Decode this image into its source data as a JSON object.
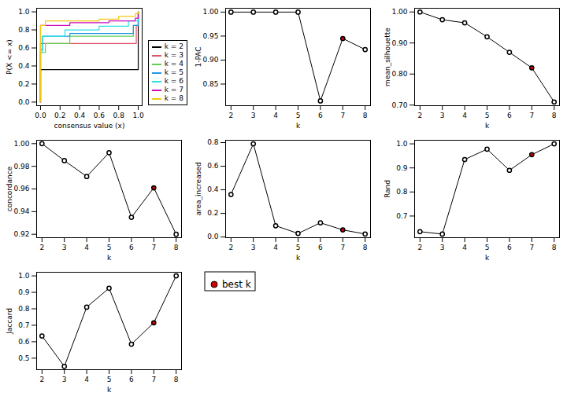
{
  "chart_data": [
    {
      "type": "step",
      "xlabel": "consensus value (x)",
      "ylabel": "P(X <= x)",
      "xlim": [
        -0.04,
        1.04
      ],
      "ylim": [
        -0.04,
        1.04
      ],
      "xticks": [
        {
          "value": 0,
          "label": "0.0"
        },
        {
          "value": 0.2,
          "label": "0.2"
        },
        {
          "value": 0.4,
          "label": "0.4"
        },
        {
          "value": 0.6,
          "label": "0.6"
        },
        {
          "value": 0.8,
          "label": "0.8"
        },
        {
          "value": 1,
          "label": "1.0"
        }
      ],
      "yticks": [
        {
          "value": 0,
          "label": "0.0"
        },
        {
          "value": 0.2,
          "label": "0.2"
        },
        {
          "value": 0.4,
          "label": "0.4"
        },
        {
          "value": 0.6,
          "label": "0.6"
        },
        {
          "value": 0.8,
          "label": "0.8"
        },
        {
          "value": 1,
          "label": "1.0"
        }
      ],
      "legend": "bottom-right",
      "series": [
        {
          "name": "k = 2",
          "color": "#000000",
          "x": [
            0,
            0,
            1
          ],
          "values": [
            0,
            0.36,
            1
          ]
        },
        {
          "name": "k = 3",
          "color": "#DF536B",
          "x": [
            0,
            0,
            0.98,
            1
          ],
          "values": [
            0,
            0.65,
            0.85,
            1
          ]
        },
        {
          "name": "k = 4",
          "color": "#61D04F",
          "x": [
            0,
            0,
            0.05,
            0.3,
            0.95,
            1
          ],
          "values": [
            0,
            0.55,
            0.65,
            0.73,
            0.85,
            1
          ]
        },
        {
          "name": "k = 5",
          "color": "#2297E6",
          "x": [
            0,
            0,
            0.02,
            0.3,
            0.95,
            1
          ],
          "values": [
            0,
            0.58,
            0.73,
            0.76,
            0.85,
            1
          ]
        },
        {
          "name": "k = 6",
          "color": "#28E2E5",
          "x": [
            0,
            0,
            0.02,
            0.25,
            0.6,
            0.9,
            1
          ],
          "values": [
            0,
            0.55,
            0.73,
            0.8,
            0.84,
            0.9,
            1
          ]
        },
        {
          "name": "k = 7",
          "color": "#CD0BBC",
          "x": [
            0,
            0,
            0.3,
            0.7,
            0.97,
            1
          ],
          "values": [
            0,
            0.85,
            0.88,
            0.9,
            0.93,
            1
          ]
        },
        {
          "name": "k = 8",
          "color": "#F5C710",
          "x": [
            0,
            0,
            0.05,
            0.6,
            0.8,
            0.97,
            1
          ],
          "values": [
            0,
            0.85,
            0.9,
            0.92,
            0.95,
            0.98,
            1
          ]
        }
      ]
    },
    {
      "type": "line",
      "xlabel": "k",
      "ylabel": "1-PAC",
      "marker": "circle",
      "x": [
        2,
        3,
        4,
        5,
        6,
        7,
        8
      ],
      "values": [
        1,
        1,
        1,
        1,
        0.815,
        0.945,
        0.922
      ],
      "colors": [
        "white",
        "white",
        "white",
        "white",
        "white",
        "#D00000",
        "white"
      ],
      "xlim": [
        1.76,
        8.24
      ],
      "xticks": [
        2,
        3,
        4,
        5,
        6,
        7,
        8
      ],
      "ylim": [
        0.805,
        1.008
      ],
      "yticks": [
        {
          "value": 0.85,
          "label": "0.85"
        },
        {
          "value": 0.9,
          "label": "0.90"
        },
        {
          "value": 0.95,
          "label": "0.95"
        },
        {
          "value": 1,
          "label": "1.00"
        }
      ]
    },
    {
      "type": "line",
      "xlabel": "k",
      "ylabel": "mean_silhouette",
      "marker": "circle",
      "x": [
        2,
        3,
        4,
        5,
        6,
        7,
        8
      ],
      "values": [
        1,
        0.975,
        0.965,
        0.92,
        0.87,
        0.82,
        0.71
      ],
      "colors": [
        "white",
        "white",
        "white",
        "white",
        "white",
        "#D00000",
        "white"
      ],
      "xlim": [
        1.76,
        8.24
      ],
      "xticks": [
        2,
        3,
        4,
        5,
        6,
        7,
        8
      ],
      "ylim": [
        0.698,
        1.012
      ],
      "yticks": [
        {
          "value": 0.7,
          "label": "0.70"
        },
        {
          "value": 0.8,
          "label": "0.80"
        },
        {
          "value": 0.9,
          "label": "0.90"
        },
        {
          "value": 1,
          "label": "1.00"
        }
      ]
    },
    {
      "type": "line",
      "xlabel": "k",
      "ylabel": "concordance",
      "marker": "circle",
      "x": [
        2,
        3,
        4,
        5,
        6,
        7,
        8
      ],
      "values": [
        1,
        0.985,
        0.971,
        0.992,
        0.935,
        0.961,
        0.92
      ],
      "colors": [
        "white",
        "white",
        "white",
        "white",
        "white",
        "#D00000",
        "white"
      ],
      "xlim": [
        1.76,
        8.24
      ],
      "xticks": [
        2,
        3,
        4,
        5,
        6,
        7,
        8
      ],
      "ylim": [
        0.917,
        1.003
      ],
      "yticks": [
        {
          "value": 0.92,
          "label": "0.92"
        },
        {
          "value": 0.94,
          "label": "0.94"
        },
        {
          "value": 0.96,
          "label": "0.96"
        },
        {
          "value": 0.98,
          "label": "0.98"
        },
        {
          "value": 1,
          "label": "1.00"
        }
      ]
    },
    {
      "type": "line",
      "xlabel": "k",
      "ylabel": "area_increased",
      "marker": "circle",
      "x": [
        2,
        3,
        4,
        5,
        6,
        7,
        8
      ],
      "values": [
        0.36,
        0.79,
        0.095,
        0.03,
        0.12,
        0.06,
        0.025
      ],
      "colors": [
        "white",
        "white",
        "white",
        "white",
        "white",
        "#D00000",
        "white"
      ],
      "xlim": [
        1.76,
        8.24
      ],
      "xticks": [
        2,
        3,
        4,
        5,
        6,
        7,
        8
      ],
      "ylim": [
        -0.006,
        0.82
      ],
      "yticks": [
        {
          "value": 0,
          "label": "0.0"
        },
        {
          "value": 0.2,
          "label": "0.2"
        },
        {
          "value": 0.4,
          "label": "0.4"
        },
        {
          "value": 0.6,
          "label": "0.6"
        },
        {
          "value": 0.8,
          "label": "0.8"
        }
      ]
    },
    {
      "type": "line",
      "xlabel": "k",
      "ylabel": "Rand",
      "marker": "circle",
      "x": [
        2,
        3,
        4,
        5,
        6,
        7,
        8
      ],
      "values": [
        0.635,
        0.625,
        0.935,
        0.978,
        0.89,
        0.955,
        1
      ],
      "colors": [
        "white",
        "white",
        "white",
        "white",
        "white",
        "#D00000",
        "white"
      ],
      "xlim": [
        1.76,
        8.24
      ],
      "xticks": [
        2,
        3,
        4,
        5,
        6,
        7,
        8
      ],
      "ylim": [
        0.61,
        1.015
      ],
      "yticks": [
        {
          "value": 0.7,
          "label": "0.7"
        },
        {
          "value": 0.8,
          "label": "0.8"
        },
        {
          "value": 0.9,
          "label": "0.9"
        },
        {
          "value": 1,
          "label": "1.0"
        }
      ]
    },
    {
      "type": "line",
      "xlabel": "k",
      "ylabel": "Jaccard",
      "marker": "circle",
      "x": [
        2,
        3,
        4,
        5,
        6,
        7,
        8
      ],
      "values": [
        0.635,
        0.45,
        0.81,
        0.925,
        0.585,
        0.715,
        1
      ],
      "colors": [
        "white",
        "white",
        "white",
        "white",
        "white",
        "#D00000",
        "white"
      ],
      "xlim": [
        1.76,
        8.24
      ],
      "xticks": [
        2,
        3,
        4,
        5,
        6,
        7,
        8
      ],
      "ylim": [
        0.43,
        1.022
      ],
      "yticks": [
        {
          "value": 0.5,
          "label": "0.5"
        },
        {
          "value": 0.6,
          "label": "0.6"
        },
        {
          "value": 0.7,
          "label": "0.7"
        },
        {
          "value": 0.8,
          "label": "0.8"
        },
        {
          "value": 0.9,
          "label": "0.9"
        },
        {
          "value": 1,
          "label": "1.0"
        }
      ]
    },
    {
      "type": "legend",
      "series": [
        {
          "name": "best k",
          "color": "#D00000",
          "marker": "circle"
        }
      ]
    }
  ]
}
